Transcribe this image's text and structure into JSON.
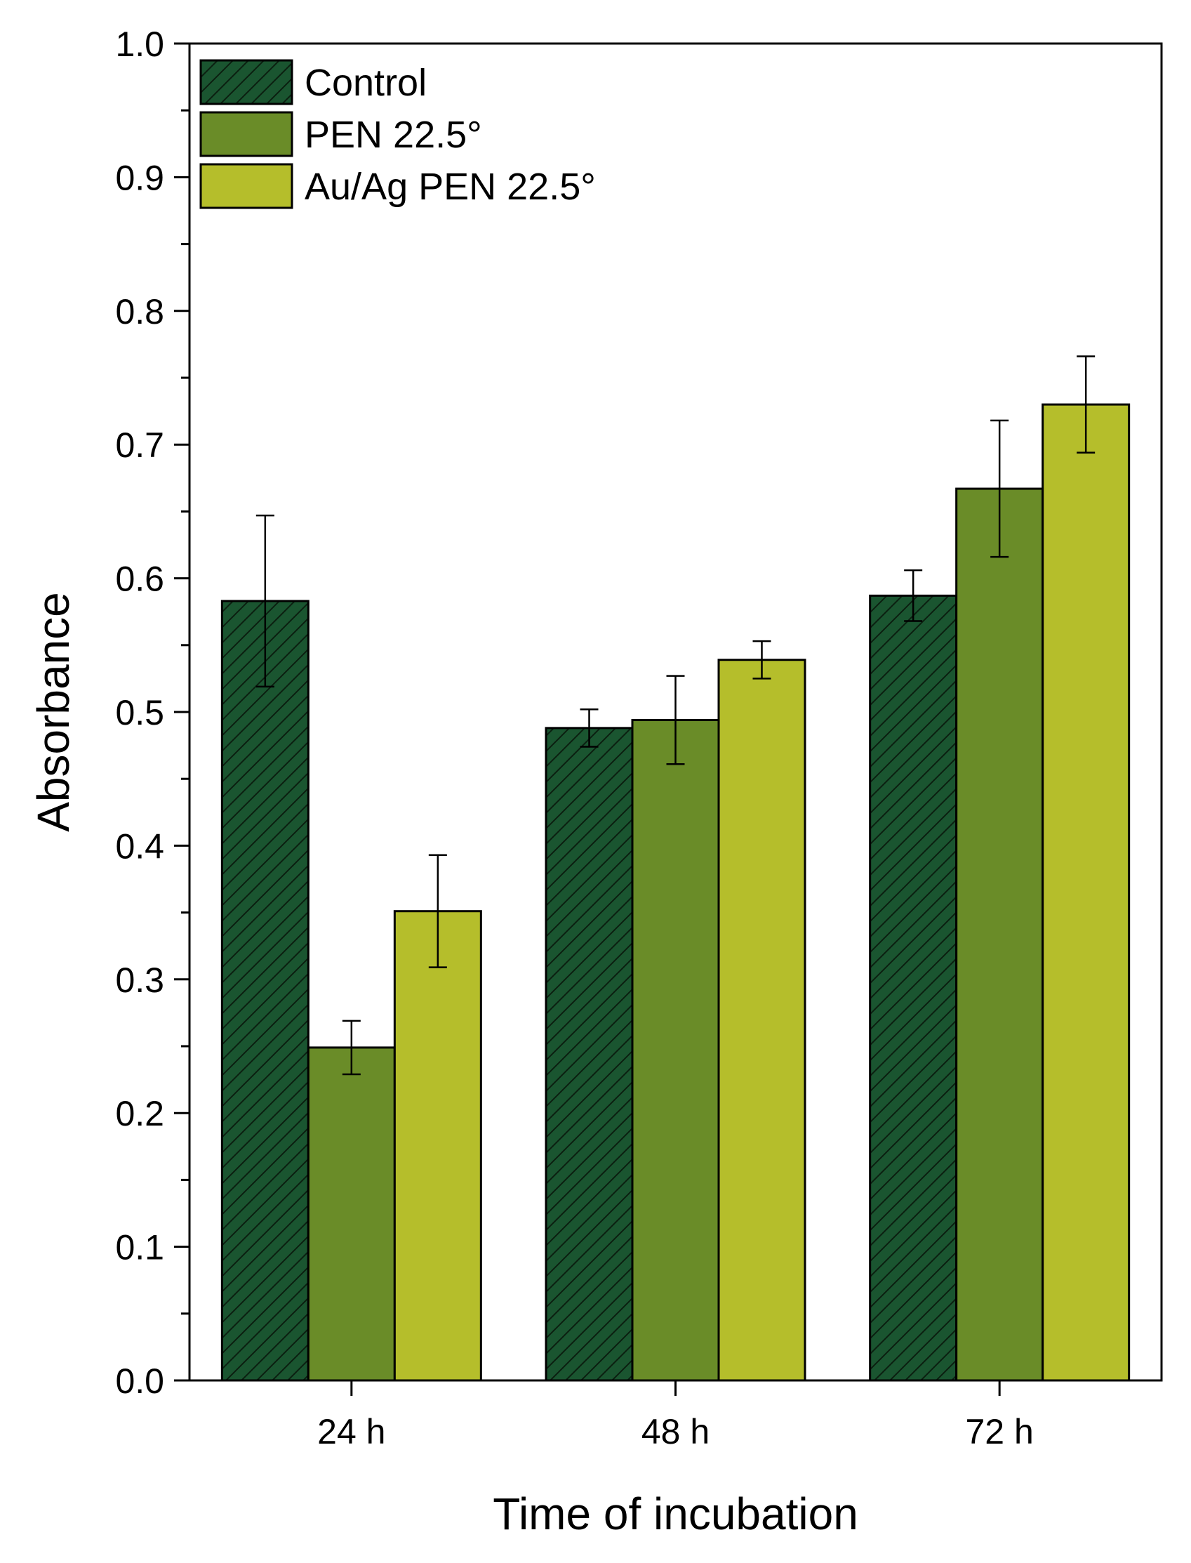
{
  "chart_data": {
    "type": "bar",
    "title": "",
    "xlabel": "Time of incubation",
    "ylabel": "Absorbance",
    "ylim": [
      0.0,
      1.0
    ],
    "yticks": [
      "0.0",
      "0.1",
      "0.2",
      "0.3",
      "0.4",
      "0.5",
      "0.6",
      "0.7",
      "0.8",
      "0.9",
      "1.0"
    ],
    "categories": [
      "24 h",
      "48 h",
      "72 h"
    ],
    "legend_position": "top-left",
    "series": [
      {
        "name": "Control",
        "color": "#1a5530",
        "pattern": "hatch",
        "values": [
          0.583,
          0.488,
          0.587
        ],
        "errors": [
          0.064,
          0.014,
          0.019
        ]
      },
      {
        "name": "PEN 22.5°",
        "color": "#6a8c28",
        "pattern": "solid",
        "values": [
          0.249,
          0.494,
          0.667
        ],
        "errors": [
          0.02,
          0.033,
          0.051
        ]
      },
      {
        "name": "Au/Ag PEN 22.5°",
        "color": "#b5be2b",
        "pattern": "solid",
        "values": [
          0.351,
          0.539,
          0.73
        ],
        "errors": [
          0.042,
          0.014,
          0.036
        ]
      }
    ]
  }
}
